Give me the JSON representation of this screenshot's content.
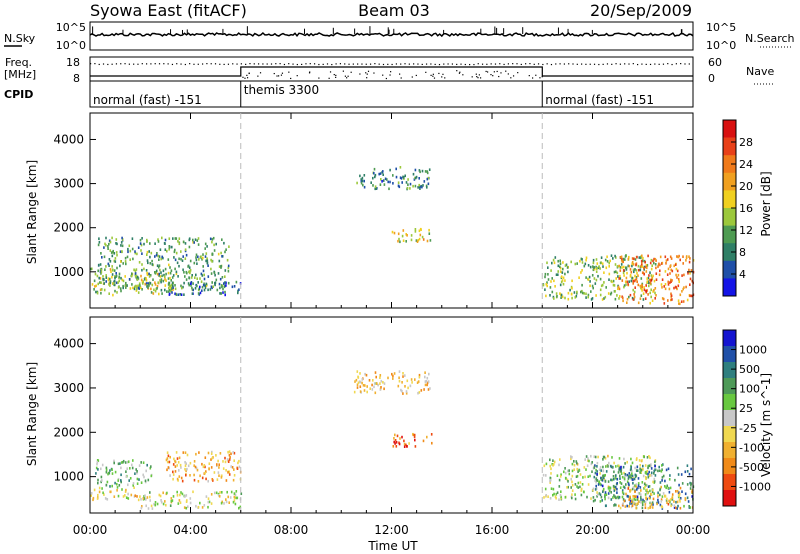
{
  "header": {
    "station": "Syowa East (fitACF)",
    "beam": "Beam 03",
    "date": "20/Sep/2009"
  },
  "noise_panel": {
    "left_label": "N.Sky",
    "right_label": "N.Search",
    "tick_top": "10^5",
    "tick_bottom": "10^0",
    "right_tick_top": "10^5",
    "right_tick_bottom": "10^0"
  },
  "freq_panel": {
    "label_line1": "Freq.",
    "label_line2": "[MHz]",
    "tick_top": "18",
    "tick_bottom": "8",
    "right_label": "Nave",
    "right_tick_top": "60",
    "right_tick_bottom": "0"
  },
  "cpid_panel": {
    "label": "CPID",
    "segments": [
      {
        "start_hour": 0,
        "end_hour": 6,
        "name": "normal (fast) -151"
      },
      {
        "start_hour": 6,
        "end_hour": 18,
        "name": "themis 3300"
      },
      {
        "start_hour": 18,
        "end_hour": 24,
        "name": "normal (fast) -151"
      }
    ]
  },
  "x_axis": {
    "label": "Time UT",
    "ticks": [
      "00:00",
      "04:00",
      "08:00",
      "12:00",
      "16:00",
      "20:00",
      "00:00"
    ],
    "range_hours": [
      0,
      24
    ]
  },
  "colors": {
    "power_scale": [
      "#1414e6",
      "#1f4fa8",
      "#2f7f66",
      "#4e9b52",
      "#9cc83c",
      "#f0d020",
      "#f0a020",
      "#f07a1a",
      "#e84018",
      "#d81010"
    ],
    "velocity_scale": [
      "#e01010",
      "#ee4a10",
      "#f08a18",
      "#f0b030",
      "#f0d850",
      "#c8c8c8",
      "#68c840",
      "#4e9a58",
      "#2f7f7f",
      "#2050a8",
      "#1414d0"
    ]
  },
  "chart_data": [
    {
      "type": "heatmap",
      "panel": "power",
      "ylabel": "Slant Range [km]",
      "xlabel": "",
      "ylim": [
        180,
        4600
      ],
      "yticks": [
        "1000",
        "2000",
        "3000",
        "4000"
      ],
      "colorbar_label": "Power [dB]",
      "colorbar_ticks": [
        "4",
        "8",
        "12",
        "16",
        "20",
        "24",
        "28"
      ],
      "colorbar_range": [
        0,
        30
      ],
      "regions": [
        {
          "hours": [
            0.0,
            3.5
          ],
          "range_km": [
            500,
            1100
          ],
          "value": 14
        },
        {
          "hours": [
            0.3,
            5.5
          ],
          "range_km": [
            600,
            1800
          ],
          "value": 10
        },
        {
          "hours": [
            3.0,
            6.0
          ],
          "range_km": [
            500,
            800
          ],
          "value": 6
        },
        {
          "hours": [
            10.5,
            13.5
          ],
          "range_km": [
            2900,
            3400
          ],
          "value": 8
        },
        {
          "hours": [
            12.0,
            13.6
          ],
          "range_km": [
            1700,
            2000
          ],
          "value": 16
        },
        {
          "hours": [
            18.0,
            22.5
          ],
          "range_km": [
            400,
            1400
          ],
          "value": 12
        },
        {
          "hours": [
            21.0,
            24.0
          ],
          "range_km": [
            300,
            1400
          ],
          "value": 22
        }
      ]
    },
    {
      "type": "heatmap",
      "panel": "velocity",
      "ylabel": "Slant Range [km]",
      "xlabel": "Time UT",
      "ylim": [
        180,
        4600
      ],
      "yticks": [
        "1000",
        "2000",
        "3000",
        "4000"
      ],
      "colorbar_label": "Velocity [m s^-1]",
      "colorbar_ticks": [
        "1000",
        "500",
        "100",
        "25",
        "-25",
        "-100",
        "-500",
        "-1000"
      ],
      "colorbar_range": [
        -1200,
        1200
      ],
      "regions": [
        {
          "hours": [
            0.0,
            2.0
          ],
          "range_km": [
            500,
            800
          ],
          "value": -150
        },
        {
          "hours": [
            0.2,
            2.5
          ],
          "range_km": [
            800,
            1400
          ],
          "value": 300
        },
        {
          "hours": [
            2.0,
            6.0
          ],
          "range_km": [
            300,
            700
          ],
          "value": -60
        },
        {
          "hours": [
            3.0,
            6.0
          ],
          "range_km": [
            900,
            1600
          ],
          "value": -450
        },
        {
          "hours": [
            10.5,
            13.5
          ],
          "range_km": [
            2900,
            3400
          ],
          "value": -300
        },
        {
          "hours": [
            12.0,
            13.6
          ],
          "range_km": [
            1700,
            2000
          ],
          "value": -700
        },
        {
          "hours": [
            18.0,
            22.5
          ],
          "range_km": [
            500,
            1500
          ],
          "value": 80
        },
        {
          "hours": [
            20.0,
            24.0
          ],
          "range_km": [
            300,
            1300
          ],
          "value": 600
        },
        {
          "hours": [
            21.0,
            24.0
          ],
          "range_km": [
            300,
            800
          ],
          "value": -400
        }
      ]
    }
  ]
}
